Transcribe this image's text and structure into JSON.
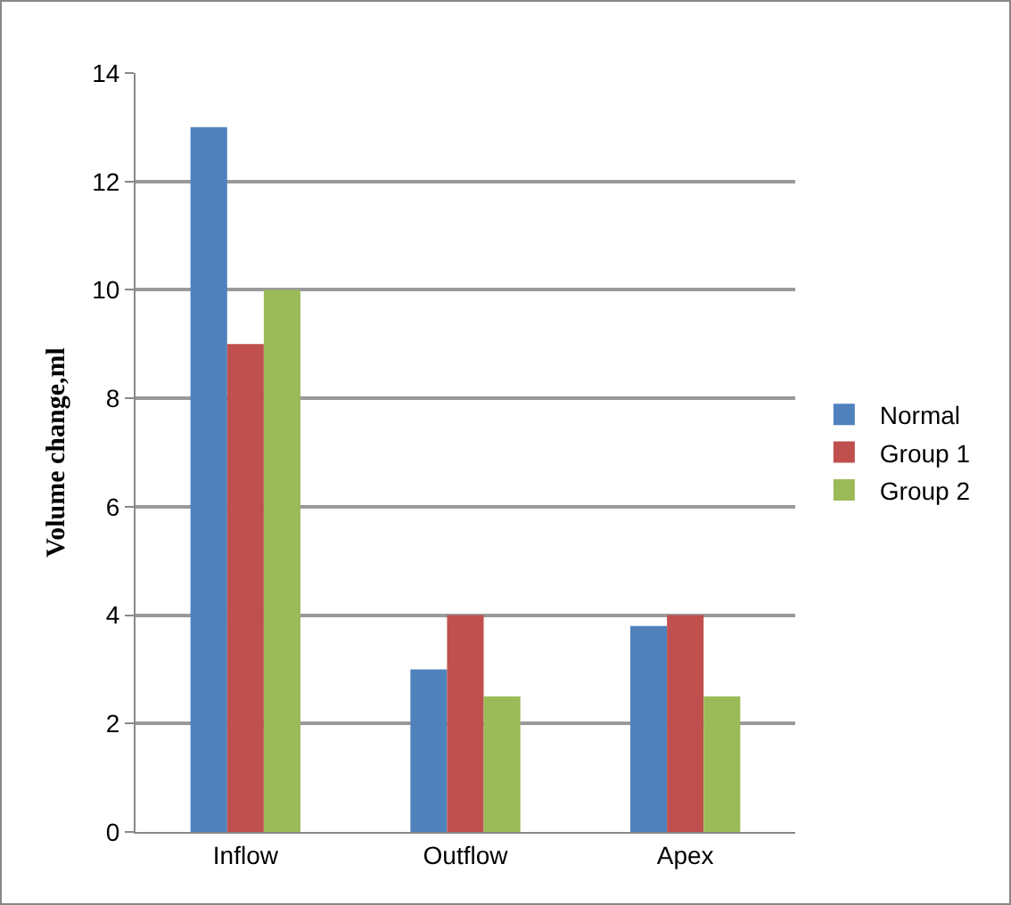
{
  "chart_data": {
    "type": "bar",
    "ylabel": "Volume change,ml",
    "categories": [
      "Inflow",
      "Outflow",
      "Apex"
    ],
    "series": [
      {
        "name": "Normal",
        "color": "#4f81bd",
        "values": [
          13,
          3,
          3.8
        ]
      },
      {
        "name": "Group 1",
        "color": "#c0504d",
        "values": [
          9,
          4,
          4
        ]
      },
      {
        "name": "Group 2",
        "color": "#9bbb59",
        "values": [
          10,
          2.5,
          2.5
        ]
      }
    ],
    "ylim": [
      0,
      14
    ],
    "yticks": [
      0,
      2,
      4,
      6,
      8,
      10,
      12,
      14
    ],
    "grid": "y",
    "legend": "right"
  }
}
